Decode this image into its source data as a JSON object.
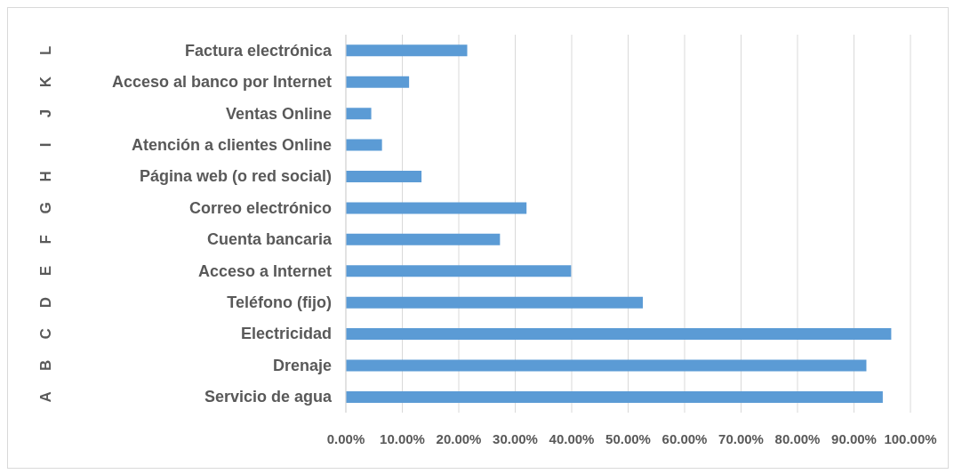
{
  "chart_data": {
    "type": "bar",
    "orientation": "horizontal",
    "categories": [
      "Factura electrónica",
      "Acceso al banco por Internet",
      "Ventas Online",
      "Atención a clientes Online",
      "Página web (o red social)",
      "Correo electrónico",
      "Cuenta bancaria",
      "Acceso a Internet",
      "Teléfono (fijo)",
      "Electricidad",
      "Drenaje",
      "Servicio de agua"
    ],
    "values": [
      21.5,
      11.2,
      4.5,
      6.4,
      13.4,
      32.0,
      27.3,
      39.9,
      52.6,
      96.6,
      92.2,
      95.1
    ],
    "color": "#5b9bd5",
    "xlim": [
      0,
      100
    ],
    "xticks": [
      {
        "value": 0,
        "label": "0.00%"
      },
      {
        "value": 10,
        "label": "10.00%"
      },
      {
        "value": 20,
        "label": "20.00%"
      },
      {
        "value": 30,
        "label": "30.00%"
      },
      {
        "value": 40,
        "label": "40.00%"
      },
      {
        "value": 50,
        "label": "50.00%"
      },
      {
        "value": 60,
        "label": "60.00%"
      },
      {
        "value": 70,
        "label": "70.00%"
      },
      {
        "value": 80,
        "label": "80.00%"
      },
      {
        "value": 90,
        "label": "90.00%"
      },
      {
        "value": 100,
        "label": "100.00%"
      }
    ],
    "grid": "x",
    "annotations": [
      "L",
      "K",
      "J",
      "I",
      "H",
      "G",
      "F",
      "E",
      "D",
      "C",
      "B",
      "A"
    ]
  }
}
